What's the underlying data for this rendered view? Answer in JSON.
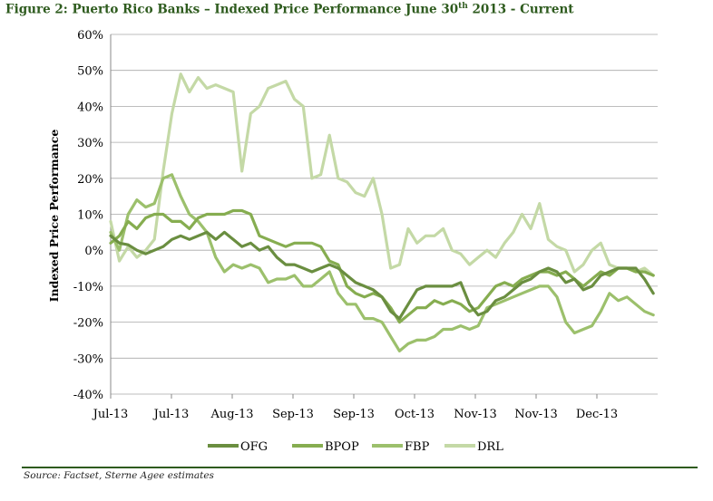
{
  "title_main": "Figure 2: Puerto Rico Banks – Indexed Price Performance June 30",
  "title_sup": "th",
  "title_tail": " 2013 - Current",
  "source": "Source: Factset, Sterne Agee estimates",
  "colors": {
    "OFG": "#6a8e40",
    "BPOP": "#86ad50",
    "FBP": "#9cc06c",
    "DRL": "#c4d9a6",
    "title": "#2e5b1e",
    "rule": "#2e5b1e"
  },
  "chart_data": {
    "type": "line",
    "title": "Figure 2: Puerto Rico Banks – Indexed Price Performance June 30th 2013 - Current",
    "xlabel": "",
    "ylabel": "Indexed Price Performance",
    "ylim": [
      -0.4,
      0.6
    ],
    "y_ticks": [
      "60%",
      "50%",
      "40%",
      "30%",
      "20%",
      "10%",
      "0%",
      "-10%",
      "-20%",
      "-30%",
      "-40%"
    ],
    "x_tick_labels": [
      "Jul-13",
      "Jul-13",
      "Aug-13",
      "Sep-13",
      "Sep-13",
      "Oct-13",
      "Nov-13",
      "Nov-13",
      "Dec-13"
    ],
    "x_range": [
      0,
      125
    ],
    "legend": "bottom",
    "grid": "horizontal",
    "series": [
      {
        "name": "OFG",
        "x": [
          0,
          2,
          4,
          6,
          8,
          10,
          12,
          14,
          16,
          18,
          20,
          22,
          24,
          26,
          28,
          30,
          32,
          34,
          36,
          38,
          40,
          42,
          44,
          46,
          48,
          50,
          52,
          54,
          56,
          58,
          60,
          62,
          64,
          66,
          68,
          70,
          72,
          74,
          76,
          78,
          80,
          82,
          84,
          86,
          88,
          90,
          92,
          94,
          96,
          98,
          100,
          102,
          104,
          106,
          108,
          110,
          112,
          114,
          116,
          118,
          120,
          122,
          124
        ],
        "y": [
          0.04,
          0.02,
          0.015,
          0.0,
          -0.01,
          0.0,
          0.01,
          0.03,
          0.04,
          0.03,
          0.04,
          0.05,
          0.03,
          0.05,
          0.03,
          0.01,
          0.02,
          0.0,
          0.01,
          -0.02,
          -0.04,
          -0.04,
          -0.05,
          -0.06,
          -0.05,
          -0.04,
          -0.05,
          -0.07,
          -0.09,
          -0.1,
          -0.11,
          -0.13,
          -0.17,
          -0.19,
          -0.15,
          -0.11,
          -0.1,
          -0.1,
          -0.1,
          -0.1,
          -0.09,
          -0.15,
          -0.18,
          -0.17,
          -0.14,
          -0.13,
          -0.11,
          -0.09,
          -0.08,
          -0.06,
          -0.05,
          -0.06,
          -0.09,
          -0.08,
          -0.11,
          -0.1,
          -0.07,
          -0.06,
          -0.05,
          -0.05,
          -0.05,
          -0.08,
          -0.12
        ]
      },
      {
        "name": "BPOP",
        "x": [
          0,
          2,
          4,
          6,
          8,
          10,
          12,
          14,
          16,
          18,
          20,
          22,
          24,
          26,
          28,
          30,
          32,
          34,
          36,
          38,
          40,
          42,
          44,
          46,
          48,
          50,
          52,
          54,
          56,
          58,
          60,
          62,
          64,
          66,
          68,
          70,
          72,
          74,
          76,
          78,
          80,
          82,
          84,
          86,
          88,
          90,
          92,
          94,
          96,
          98,
          100,
          102,
          104,
          106,
          108,
          110,
          112,
          114,
          116,
          118,
          120,
          122,
          124
        ],
        "y": [
          0.02,
          0.04,
          0.08,
          0.06,
          0.09,
          0.1,
          0.1,
          0.08,
          0.08,
          0.06,
          0.09,
          0.1,
          0.1,
          0.1,
          0.11,
          0.11,
          0.1,
          0.04,
          0.03,
          0.02,
          0.01,
          0.02,
          0.02,
          0.02,
          0.01,
          -0.03,
          -0.04,
          -0.1,
          -0.12,
          -0.13,
          -0.12,
          -0.13,
          -0.16,
          -0.2,
          -0.18,
          -0.16,
          -0.16,
          -0.14,
          -0.15,
          -0.14,
          -0.15,
          -0.17,
          -0.16,
          -0.13,
          -0.1,
          -0.09,
          -0.1,
          -0.08,
          -0.07,
          -0.06,
          -0.06,
          -0.07,
          -0.06,
          -0.08,
          -0.1,
          -0.08,
          -0.06,
          -0.07,
          -0.05,
          -0.05,
          -0.06,
          -0.06,
          -0.07
        ]
      },
      {
        "name": "FBP",
        "x": [
          0,
          2,
          4,
          6,
          8,
          10,
          12,
          14,
          16,
          18,
          20,
          22,
          24,
          26,
          28,
          30,
          32,
          34,
          36,
          38,
          40,
          42,
          44,
          46,
          48,
          50,
          52,
          54,
          56,
          58,
          60,
          62,
          64,
          66,
          68,
          70,
          72,
          74,
          76,
          78,
          80,
          82,
          84,
          86,
          88,
          90,
          92,
          94,
          96,
          98,
          100,
          102,
          104,
          106,
          108,
          110,
          112,
          114,
          116,
          118,
          120,
          122,
          124
        ],
        "y": [
          0.05,
          0.0,
          0.1,
          0.14,
          0.12,
          0.13,
          0.2,
          0.21,
          0.15,
          0.1,
          0.08,
          0.05,
          -0.02,
          -0.06,
          -0.04,
          -0.05,
          -0.04,
          -0.05,
          -0.09,
          -0.08,
          -0.08,
          -0.07,
          -0.1,
          -0.1,
          -0.08,
          -0.06,
          -0.12,
          -0.15,
          -0.15,
          -0.19,
          -0.19,
          -0.2,
          -0.24,
          -0.28,
          -0.26,
          -0.25,
          -0.25,
          -0.24,
          -0.22,
          -0.22,
          -0.21,
          -0.22,
          -0.21,
          -0.16,
          -0.15,
          -0.14,
          -0.13,
          -0.12,
          -0.11,
          -0.1,
          -0.1,
          -0.13,
          -0.2,
          -0.23,
          -0.22,
          -0.21,
          -0.17,
          -0.12,
          -0.14,
          -0.13,
          -0.15,
          -0.17,
          -0.18
        ]
      },
      {
        "name": "DRL",
        "x": [
          0,
          2,
          4,
          6,
          8,
          10,
          12,
          14,
          16,
          18,
          20,
          22,
          24,
          26,
          28,
          30,
          32,
          34,
          36,
          38,
          40,
          42,
          44,
          46,
          48,
          50,
          52,
          54,
          56,
          58,
          60,
          62,
          64,
          66,
          68,
          70,
          72,
          74,
          76,
          78,
          80,
          82,
          84,
          86,
          88,
          90,
          92,
          94,
          96,
          98,
          100,
          102,
          104,
          106,
          108,
          110,
          112,
          114,
          116,
          118,
          120,
          122,
          124
        ],
        "y": [
          0.08,
          -0.03,
          0.01,
          -0.02,
          0.0,
          0.03,
          0.22,
          0.38,
          0.49,
          0.44,
          0.48,
          0.45,
          0.46,
          0.45,
          0.44,
          0.22,
          0.38,
          0.4,
          0.45,
          0.46,
          0.47,
          0.42,
          0.4,
          0.2,
          0.21,
          0.32,
          0.2,
          0.19,
          0.16,
          0.15,
          0.2,
          0.1,
          -0.05,
          -0.04,
          0.06,
          0.02,
          0.04,
          0.04,
          0.06,
          0.0,
          -0.01,
          -0.04,
          -0.02,
          0.0,
          -0.02,
          0.02,
          0.05,
          0.1,
          0.06,
          0.13,
          0.03,
          0.01,
          0.0,
          -0.06,
          -0.04,
          0.0,
          0.02,
          -0.04,
          -0.05,
          -0.05,
          -0.06,
          -0.05,
          -0.07
        ]
      }
    ]
  }
}
